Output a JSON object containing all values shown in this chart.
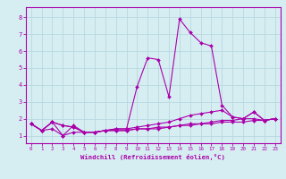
{
  "xlabel": "Windchill (Refroidissement éolien,°C)",
  "bg_color": "#d6eef2",
  "grid_color": "#b8d8e0",
  "line_color": "#aa00aa",
  "spine_color": "#aa00aa",
  "x_ticks": [
    0,
    1,
    2,
    3,
    4,
    5,
    6,
    7,
    8,
    9,
    10,
    11,
    12,
    13,
    14,
    15,
    16,
    17,
    18,
    19,
    20,
    21,
    22,
    23
  ],
  "y_ticks": [
    1,
    2,
    3,
    4,
    5,
    6,
    7,
    8
  ],
  "xlim": [
    -0.5,
    23.5
  ],
  "ylim": [
    0.55,
    8.6
  ],
  "series": [
    [
      1.7,
      1.3,
      1.8,
      1.0,
      1.6,
      1.2,
      1.2,
      1.3,
      1.4,
      1.4,
      3.9,
      5.6,
      5.5,
      3.3,
      7.9,
      7.1,
      6.5,
      6.3,
      2.8,
      2.1,
      2.0,
      2.4,
      1.9,
      2.0
    ],
    [
      1.7,
      1.3,
      1.8,
      1.6,
      1.5,
      1.2,
      1.2,
      1.3,
      1.4,
      1.4,
      1.5,
      1.6,
      1.7,
      1.8,
      2.0,
      2.2,
      2.3,
      2.4,
      2.5,
      2.1,
      2.0,
      2.4,
      1.9,
      2.0
    ],
    [
      1.7,
      1.3,
      1.4,
      1.0,
      1.2,
      1.2,
      1.2,
      1.3,
      1.3,
      1.3,
      1.4,
      1.4,
      1.5,
      1.5,
      1.6,
      1.6,
      1.7,
      1.7,
      1.8,
      1.8,
      1.8,
      1.9,
      1.9,
      2.0
    ],
    [
      1.7,
      1.3,
      1.8,
      1.6,
      1.5,
      1.2,
      1.2,
      1.3,
      1.3,
      1.3,
      1.4,
      1.4,
      1.4,
      1.5,
      1.6,
      1.7,
      1.7,
      1.8,
      1.9,
      1.9,
      2.0,
      2.0,
      1.9,
      2.0
    ]
  ]
}
